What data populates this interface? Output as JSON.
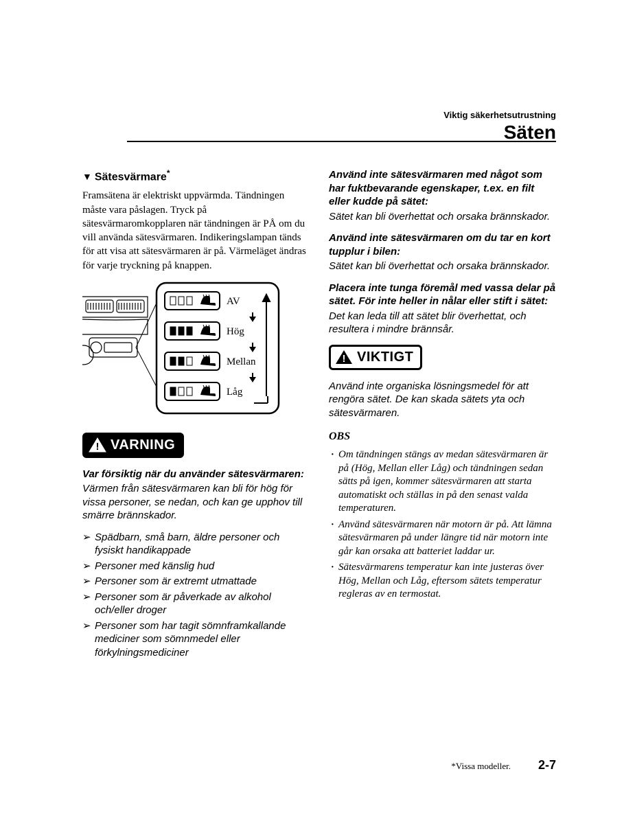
{
  "header": {
    "chapter": "Viktig säkerhetsutrustning",
    "section": "Säten"
  },
  "left": {
    "section_marker": "▼",
    "section_title": "Sätesvärmare",
    "section_asterisk": "*",
    "intro": "Framsätena är elektriskt uppvärmda. Tändningen måste vara påslagen. Tryck på sätesvärmaromkopplaren när tändningen är PÅ om du vill använda sätesvärmaren. Indikeringslampan tänds för att visa att sätesvärmaren är på. Värmeläget ändras för varje tryckning på knappen.",
    "diagram": {
      "levels": [
        "AV",
        "Hög",
        "Mellan",
        "Låg"
      ]
    },
    "warning_label": "VARNING",
    "warning_head": "Var försiktig när du använder sätesvärmaren:",
    "warning_body": "Värmen från sätesvärmaren kan bli för hög för vissa personer, se nedan, och kan ge upphov till smärre brännskador.",
    "warning_items": [
      "Spädbarn, små barn, äldre personer och fysiskt handikappade",
      "Personer med känslig hud",
      "Personer som är extremt utmattade",
      "Personer som är påverkade av alkohol och/eller droger",
      "Personer som har tagit sömnframkallande mediciner som sömnmedel eller förkylningsmediciner"
    ]
  },
  "right": {
    "w1_head": "Använd inte sätesvärmaren med något som har fuktbevarande egenskaper, t.ex. en filt eller kudde på sätet:",
    "w1_body": "Sätet kan bli överhettat och orsaka brännskador.",
    "w2_head": "Använd inte sätesvärmaren om du tar en kort tupplur i bilen:",
    "w2_body": "Sätet kan bli överhettat och orsaka brännskador.",
    "w3_head": "Placera inte tunga föremål med vassa delar på sätet. För inte heller in nålar eller stift i sätet:",
    "w3_body": "Det kan leda till att sätet blir överhettat, och resultera i mindre brännsår.",
    "viktigt_label": "VIKTIGT",
    "viktigt_body": "Använd inte organiska lösningsmedel för att rengöra sätet. De kan skada sätets yta och sätesvärmaren.",
    "obs_title": "OBS",
    "obs_items": [
      "Om tändningen stängs av medan sätesvärmaren är på (Hög, Mellan eller Låg) och tändningen sedan sätts på igen, kommer sätesvärmaren att starta automatiskt och ställas in på den senast valda temperaturen.",
      "Använd sätesvärmaren när motorn är på. Att lämna sätesvärmaren på under längre tid när motorn inte går kan orsaka att batteriet laddar ur.",
      "Sätesvärmarens temperatur kan inte justeras över Hög, Mellan och Låg, eftersom sätets temperatur regleras av en termostat."
    ]
  },
  "footer": {
    "note": "*Vissa modeller.",
    "page": "2-7"
  },
  "colors": {
    "text": "#000000",
    "bg": "#ffffff"
  }
}
